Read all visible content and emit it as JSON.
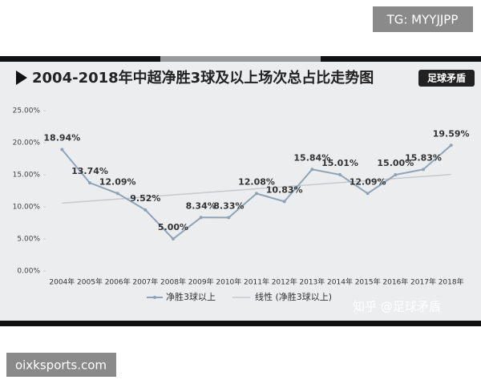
{
  "overlay": {
    "tag": "TG: MYYJJPP",
    "site": "oixksports.com",
    "watermark": "知乎 @足球矛盾",
    "logo": "足球矛盾"
  },
  "chart_data": {
    "type": "line",
    "title": "2004-2018年中超净胜3球及以上场次总占比走势图",
    "categories": [
      "2004年",
      "2005年",
      "2006年",
      "2007年",
      "2008年",
      "2009年",
      "2010年",
      "2011年",
      "2012年",
      "2013年",
      "2014年",
      "2015年",
      "2016年",
      "2017年",
      "2018年"
    ],
    "series": [
      {
        "name": "净胜3球以上",
        "color": "#8ea4b6",
        "values": [
          18.94,
          13.74,
          12.09,
          9.52,
          5.0,
          8.34,
          8.33,
          12.08,
          10.83,
          15.84,
          15.01,
          12.09,
          15.0,
          15.83,
          19.59
        ],
        "value_labels": [
          "18.94%",
          "13.74%",
          "12.09%",
          "9.52%",
          "5.00%",
          "8.34%",
          "8.33%",
          "12.08%",
          "10.83%",
          "15.84%",
          "15.01%",
          "12.09%",
          "15.00%",
          "15.83%",
          "19.59%"
        ]
      }
    ],
    "trendline": {
      "name": "线性 (净胜3球以上)",
      "color": "#c4cad0"
    },
    "ylim": [
      0,
      25
    ],
    "yticks": [
      {
        "value": 0,
        "label": "0.00%"
      },
      {
        "value": 5,
        "label": "5.00%"
      },
      {
        "value": 10,
        "label": "10.00%"
      },
      {
        "value": 15,
        "label": "15.00%"
      },
      {
        "value": 20,
        "label": "20.00%"
      },
      {
        "value": 25,
        "label": "25.00%"
      }
    ]
  }
}
